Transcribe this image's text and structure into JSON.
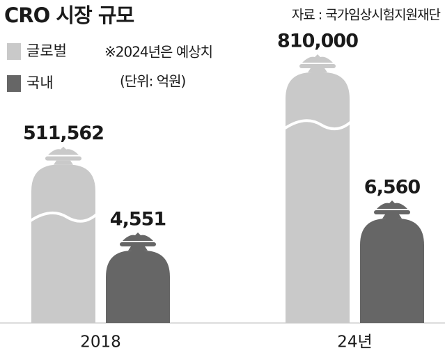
{
  "chart_data": {
    "type": "bar",
    "title": "CRO 시장 규모",
    "source": "자료 : 국가임상시험지원재단",
    "note": "※2024년은 예상치",
    "unit": "(단위: 억원)",
    "categories": [
      "2018",
      "24년"
    ],
    "series": [
      {
        "name": "글로벌",
        "color": "#c9c9c9",
        "values": [
          511562,
          810000
        ],
        "value_labels": [
          "511,562",
          "810,000"
        ]
      },
      {
        "name": "국내",
        "color": "#666666",
        "values": [
          4551,
          6560
        ],
        "value_labels": [
          "4,551",
          "6,560"
        ]
      }
    ]
  }
}
